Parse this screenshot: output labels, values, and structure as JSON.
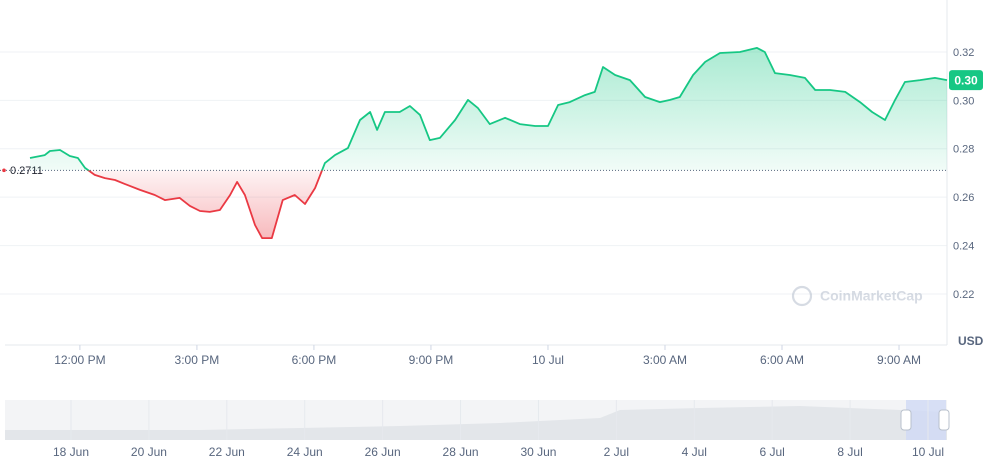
{
  "chart_data": {
    "type": "line",
    "x": [
      10.72,
      11.1,
      11.23,
      11.49,
      11.74,
      11.95,
      12.13,
      12.38,
      12.64,
      12.9,
      13.15,
      13.54,
      13.92,
      14.18,
      14.56,
      14.82,
      15.08,
      15.33,
      15.59,
      15.85,
      16.03,
      16.23,
      16.49,
      16.67,
      16.92,
      17.2,
      17.51,
      17.77,
      18.03,
      18.28,
      18.54,
      18.87,
      19.18,
      19.44,
      19.62,
      19.82,
      20.2,
      20.46,
      20.72,
      20.97,
      21.23,
      21.62,
      21.95,
      22.2,
      22.51,
      22.9,
      23.28,
      23.67,
      24.0,
      24.26,
      24.56,
      24.95,
      25.2,
      25.41,
      25.72,
      26.1,
      26.49,
      26.87,
      27.13,
      27.38,
      27.72,
      28.03,
      28.41,
      28.92,
      29.36,
      29.56,
      29.82,
      30.2,
      30.59,
      30.85,
      31.23,
      31.62,
      32.0,
      32.31,
      32.64,
      32.9,
      33.15,
      33.54,
      33.92,
      34.23
    ],
    "values": [
      0.2762,
      0.2774,
      0.2791,
      0.2795,
      0.277,
      0.2762,
      0.2721,
      0.2692,
      0.2679,
      0.2671,
      0.2655,
      0.263,
      0.2609,
      0.2588,
      0.2597,
      0.2564,
      0.2543,
      0.2539,
      0.2547,
      0.2609,
      0.2663,
      0.2609,
      0.2485,
      0.2431,
      0.2431,
      0.2588,
      0.2609,
      0.2572,
      0.2638,
      0.2741,
      0.2774,
      0.2803,
      0.2919,
      0.2952,
      0.2878,
      0.2952,
      0.2952,
      0.2977,
      0.294,
      0.2836,
      0.2845,
      0.2919,
      0.3002,
      0.2969,
      0.2902,
      0.2928,
      0.2902,
      0.2894,
      0.2894,
      0.2981,
      0.2993,
      0.3022,
      0.3035,
      0.3138,
      0.3105,
      0.3084,
      0.3014,
      0.2993,
      0.3002,
      0.3014,
      0.3105,
      0.3159,
      0.3196,
      0.32,
      0.3217,
      0.32,
      0.3113,
      0.3105,
      0.3093,
      0.3043,
      0.3043,
      0.3035,
      0.2993,
      0.2952,
      0.2919,
      0.3002,
      0.3076,
      0.3084,
      0.3093,
      0.3084
    ],
    "color_up": "#16c784",
    "color_down": "#ea3943",
    "reference": 0.2711,
    "current_price": {
      "value": 0.3,
      "label": "0.30"
    },
    "xlim": [
      10.08,
      34.23
    ],
    "xticks": [
      {
        "value": 12,
        "label": "12:00 PM"
      },
      {
        "value": 15,
        "label": "3:00 PM"
      },
      {
        "value": 18,
        "label": "6:00 PM"
      },
      {
        "value": 21,
        "label": "9:00 PM"
      },
      {
        "value": 24,
        "label": "10 Jul"
      },
      {
        "value": 27,
        "label": "3:00 AM"
      },
      {
        "value": 30,
        "label": "6:00 AM"
      },
      {
        "value": 33,
        "label": "9:00 AM"
      }
    ],
    "ylim": [
      0.1989,
      0.3415
    ],
    "yticks": [
      0.32,
      {
        "value": 0.3,
        "label": "0.30"
      },
      0.28,
      0.26,
      0.24,
      0.22
    ],
    "grid": true,
    "unit": "USD",
    "watermark": "CoinMarketCap",
    "navigator_labels": [
      "18 Jun",
      "20 Jun",
      "22 Jun",
      "24 Jun",
      "26 Jun",
      "28 Jun",
      "30 Jun",
      "2 Jul",
      "4 Jul",
      "6 Jul",
      "8 Jul",
      "10 Jul"
    ]
  }
}
